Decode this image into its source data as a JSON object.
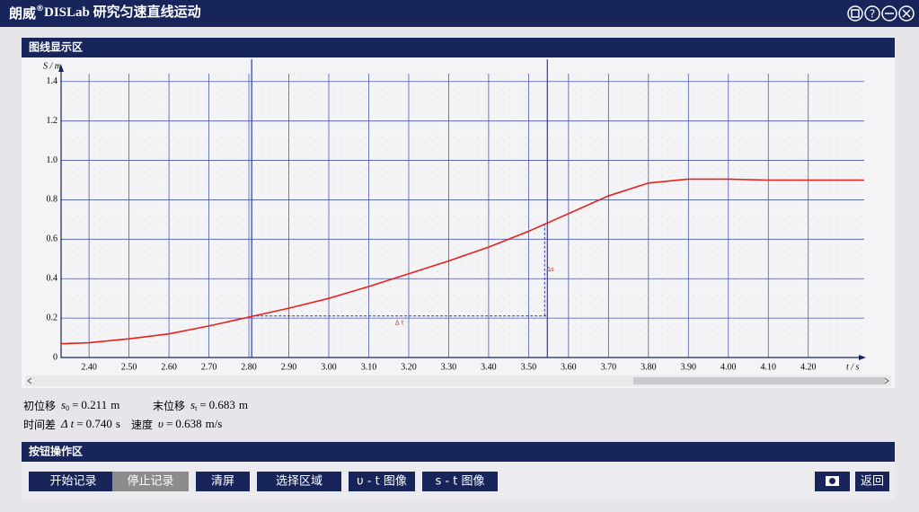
{
  "window": {
    "title_brand": "朗威",
    "title_mark": "®",
    "title_text": "DISLab 研究匀速直线运动",
    "help_icon": "?"
  },
  "graph_panel": {
    "title": "图线显示区"
  },
  "chart_data": {
    "type": "line",
    "y_label": "S / m",
    "x_label": "t / s",
    "x": [
      2.33,
      2.4,
      2.5,
      2.6,
      2.7,
      2.8,
      2.9,
      3.0,
      3.1,
      3.2,
      3.3,
      3.4,
      3.5,
      3.6,
      3.7,
      3.8,
      3.9,
      4.0,
      4.1,
      4.2,
      4.34
    ],
    "series": [
      {
        "color": "#e8201c",
        "values": [
          0.07,
          0.075,
          0.095,
          0.12,
          0.16,
          0.205,
          0.25,
          0.3,
          0.36,
          0.425,
          0.49,
          0.56,
          0.64,
          0.73,
          0.82,
          0.885,
          0.905,
          0.905,
          0.9,
          0.9,
          0.9
        ]
      }
    ],
    "xlim": [
      2.33,
      4.34
    ],
    "ylim": [
      0,
      1.44
    ],
    "xticks": [
      {
        "value": 2.4,
        "label": "2.40"
      },
      {
        "value": 2.5,
        "label": "2.50"
      },
      {
        "value": 2.6,
        "label": "2.60"
      },
      {
        "value": 2.7,
        "label": "2.70"
      },
      {
        "value": 2.8,
        "label": "2.80"
      },
      {
        "value": 2.9,
        "label": "2.90"
      },
      {
        "value": 3.0,
        "label": "3.00"
      },
      {
        "value": 3.1,
        "label": "3.10"
      },
      {
        "value": 3.2,
        "label": "3.20"
      },
      {
        "value": 3.3,
        "label": "3.30"
      },
      {
        "value": 3.4,
        "label": "3.40"
      },
      {
        "value": 3.5,
        "label": "3.50"
      },
      {
        "value": 3.6,
        "label": "3.60"
      },
      {
        "value": 3.7,
        "label": "3.70"
      },
      {
        "value": 3.8,
        "label": "3.80"
      },
      {
        "value": 3.9,
        "label": "3.90"
      },
      {
        "value": 4.0,
        "label": "4.00"
      },
      {
        "value": 4.1,
        "label": "4.10"
      },
      {
        "value": 4.2,
        "label": "4.20"
      }
    ],
    "yticks": [
      0,
      0.2,
      0.4,
      0.6,
      0.8,
      {
        "value": 1,
        "label": "1.0"
      },
      1.2,
      1.4
    ],
    "grid": true,
    "cursors": [
      2.807,
      3.547
    ],
    "cursor_color": "#2b3aa8",
    "delta_t_label": "Δ t",
    "delta_s_label": "Δs"
  },
  "readouts": {
    "equals": "=",
    "items": [
      {
        "label": "初位移",
        "symbol": "s",
        "subscript": "0",
        "value": 0.211,
        "unit": "m"
      },
      {
        "label": "末位移",
        "symbol": "s",
        "subscript": "t",
        "value": 0.683,
        "unit": "m"
      },
      {
        "label": "时间差",
        "symbol": "Δ t",
        "value": 0.74,
        "value_label": "0.740",
        "unit": "s"
      },
      {
        "label": "速度",
        "symbol": "υ",
        "value": 0.638,
        "unit": "m/s"
      }
    ]
  },
  "button_panel": {
    "title": "按钮操作区",
    "buttons": [
      {
        "label": "开始记录"
      },
      {
        "label": "停止记录",
        "pressed": true
      },
      {
        "label": "清屏"
      },
      {
        "label": "选择区域"
      },
      {
        "label": "υ - t 图像"
      },
      {
        "label": "s - t 图像"
      }
    ],
    "back": "返回"
  }
}
